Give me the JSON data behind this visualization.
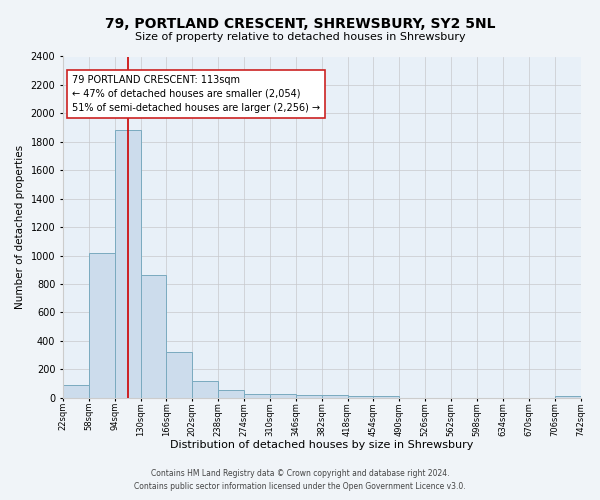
{
  "title": "79, PORTLAND CRESCENT, SHREWSBURY, SY2 5NL",
  "subtitle": "Size of property relative to detached houses in Shrewsbury",
  "xlabel": "Distribution of detached houses by size in Shrewsbury",
  "ylabel": "Number of detached properties",
  "property_size": 113,
  "annotation_title": "79 PORTLAND CRESCENT: 113sqm",
  "annotation_line1": "← 47% of detached houses are smaller (2,054)",
  "annotation_line2": "51% of semi-detached houses are larger (2,256) →",
  "bar_color": "#ccdcec",
  "bar_edge_color": "#7aaabf",
  "marker_color": "#cc0000",
  "bin_edges": [
    22,
    58,
    94,
    130,
    166,
    202,
    238,
    274,
    310,
    346,
    382,
    418,
    454,
    490,
    526,
    562,
    598,
    634,
    670,
    706,
    742
  ],
  "bin_counts": [
    90,
    1020,
    1880,
    860,
    320,
    115,
    55,
    30,
    25,
    20,
    20,
    10,
    10,
    0,
    0,
    0,
    0,
    0,
    0,
    10
  ],
  "ylim": [
    0,
    2400
  ],
  "yticks": [
    0,
    200,
    400,
    600,
    800,
    1000,
    1200,
    1400,
    1600,
    1800,
    2000,
    2200,
    2400
  ],
  "footer_line1": "Contains HM Land Registry data © Crown copyright and database right 2024.",
  "footer_line2": "Contains public sector information licensed under the Open Government Licence v3.0.",
  "background_color": "#f0f4f8",
  "plot_background_color": "#e8f0f8",
  "title_fontsize": 10,
  "subtitle_fontsize": 8,
  "xlabel_fontsize": 8,
  "ylabel_fontsize": 7.5,
  "ytick_fontsize": 7,
  "xtick_fontsize": 6,
  "annot_fontsize": 7,
  "footer_fontsize": 5.5
}
